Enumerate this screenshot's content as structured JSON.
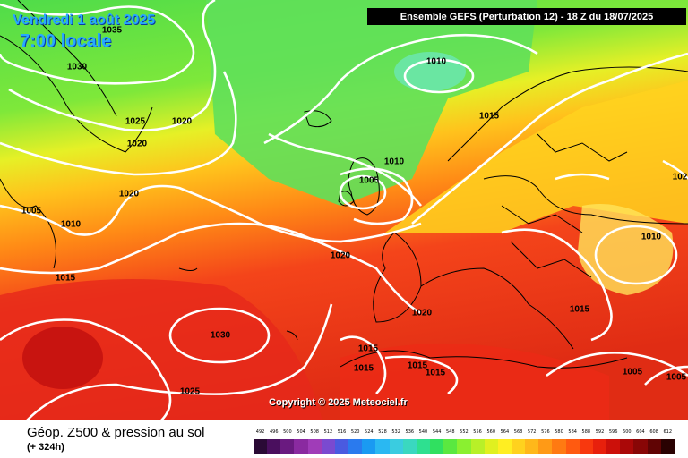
{
  "header": {
    "date_line": "Vendredi 1 août 2025",
    "time_line": "7:00 locale",
    "model_title": "Ensemble GEFS  (Perturbation 12)  -  18 Z du 18/07/2025"
  },
  "map": {
    "copyright": "Copyright © 2025 Meteociel.fr",
    "isobar_labels": [
      {
        "text": "1035"
      },
      {
        "text": "1030"
      },
      {
        "text": "1025"
      },
      {
        "text": "1020"
      },
      {
        "text": "1020"
      },
      {
        "text": "1010"
      },
      {
        "text": "1015"
      },
      {
        "text": "1010"
      },
      {
        "text": "1005"
      },
      {
        "text": "1020"
      },
      {
        "text": "1005"
      },
      {
        "text": "1010"
      },
      {
        "text": "1015"
      },
      {
        "text": "1020"
      },
      {
        "text": "1030"
      },
      {
        "text": "1025"
      },
      {
        "text": "1020"
      },
      {
        "text": "1015"
      },
      {
        "text": "1015"
      },
      {
        "text": "1015"
      },
      {
        "text": "1015"
      },
      {
        "text": "1010"
      },
      {
        "text": "1015"
      },
      {
        "text": "1005"
      },
      {
        "text": "1005"
      },
      {
        "text": "102"
      }
    ]
  },
  "footer": {
    "title": "Géop. Z500 & pression au sol",
    "subtitle": "(+ 324h)"
  },
  "legend": {
    "ticks": [
      "492",
      "496",
      "500",
      "504",
      "508",
      "512",
      "516",
      "520",
      "524",
      "528",
      "532",
      "536",
      "540",
      "544",
      "548",
      "552",
      "556",
      "560",
      "564",
      "568",
      "572",
      "576",
      "580",
      "584",
      "588",
      "592",
      "596",
      "600",
      "604",
      "608",
      "612"
    ],
    "colors": [
      "#2a0a35",
      "#4a0f5e",
      "#6a1a80",
      "#8a2aa0",
      "#a03cb8",
      "#7a4ad0",
      "#4a5ae0",
      "#2a7aee",
      "#1a9af2",
      "#2ab8f2",
      "#3acce0",
      "#3ad8c0",
      "#2ee090",
      "#30e060",
      "#5ae840",
      "#8af030",
      "#b8f028",
      "#e0f020",
      "#ffee22",
      "#ffd21e",
      "#ffb81a",
      "#ff9a16",
      "#ff7a12",
      "#ff5a10",
      "#f8380e",
      "#e8200c",
      "#cc100a",
      "#aa0808",
      "#880606",
      "#600404",
      "#2a0202"
    ]
  }
}
